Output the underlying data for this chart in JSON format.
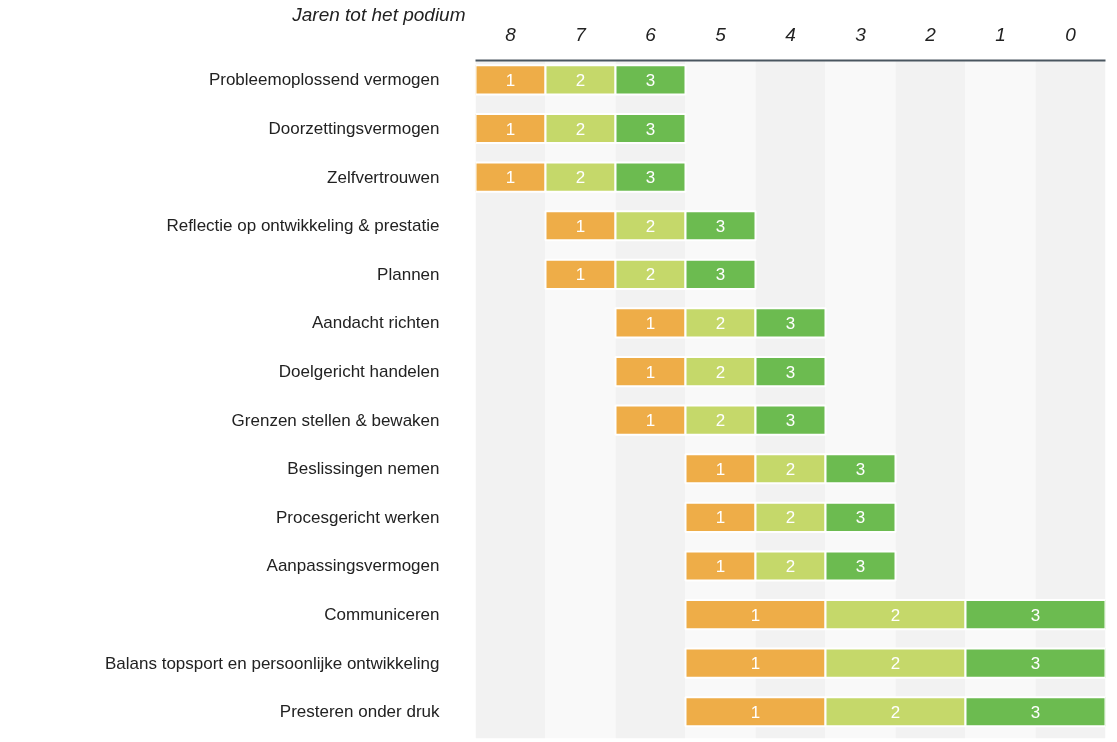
{
  "chart_data": {
    "type": "bar",
    "orientation": "horizontal",
    "xlabel": "Jaren tot het podium",
    "categories": [
      "Probleemoplossend vermogen",
      "Doorzettingsvermogen",
      "Zelfvertrouwen",
      "Reflectie op ontwikkeling & prestatie",
      "Plannen",
      "Aandacht richten",
      "Doelgericht handelen",
      "Grenzen stellen & bewaken",
      "Beslissingen nemen",
      "Procesgericht werken",
      "Aanpassingsvermogen",
      "Communiceren",
      "Balans topsport en persoonlijke ontwikkeling",
      "Presteren onder druk"
    ],
    "series": [
      {
        "name": "1",
        "color": "#eead48",
        "base": [
          7.5,
          7.5,
          7.5,
          6.5,
          6.5,
          5.5,
          5.5,
          5.5,
          4.5,
          4.5,
          4.5,
          3.5,
          3.5,
          3.5
        ],
        "values": [
          1,
          1,
          1,
          1,
          1,
          1,
          1,
          1,
          1,
          1,
          1,
          2,
          2,
          2
        ]
      },
      {
        "name": "2",
        "color": "#c5d86a",
        "base": [
          6.5,
          6.5,
          6.5,
          5.5,
          5.5,
          4.5,
          4.5,
          4.5,
          3.5,
          3.5,
          3.5,
          1.5,
          1.5,
          1.5
        ],
        "values": [
          1,
          1,
          1,
          1,
          1,
          1,
          1,
          1,
          1,
          1,
          1,
          2,
          2,
          2
        ]
      },
      {
        "name": "3",
        "color": "#6cbb50",
        "base": [
          5.5,
          5.5,
          5.5,
          4.5,
          4.5,
          3.5,
          3.5,
          3.5,
          2.5,
          2.5,
          2.5,
          -0.5,
          -0.5,
          -0.5
        ],
        "values": [
          1,
          1,
          1,
          1,
          1,
          1,
          1,
          1,
          1,
          1,
          1,
          2,
          2,
          2
        ]
      }
    ],
    "xlim": [
      8.5,
      -0.5
    ],
    "xticks": [
      8,
      7,
      6,
      5,
      4,
      3,
      2,
      1,
      0
    ],
    "bands": [
      {
        "axis": "x",
        "from": 8.5,
        "to": 7.5,
        "color": "#f2f2f2"
      },
      {
        "axis": "x",
        "from": 7.5,
        "to": 6.5,
        "color": "#f9f9f9"
      },
      {
        "axis": "x",
        "from": 6.5,
        "to": 5.5,
        "color": "#f2f2f2"
      },
      {
        "axis": "x",
        "from": 5.5,
        "to": 4.5,
        "color": "#f9f9f9"
      },
      {
        "axis": "x",
        "from": 4.5,
        "to": 3.5,
        "color": "#f2f2f2"
      },
      {
        "axis": "x",
        "from": 3.5,
        "to": 2.5,
        "color": "#f9f9f9"
      },
      {
        "axis": "x",
        "from": 2.5,
        "to": 1.5,
        "color": "#f2f2f2"
      },
      {
        "axis": "x",
        "from": 1.5,
        "to": 0.5,
        "color": "#f9f9f9"
      },
      {
        "axis": "x",
        "from": 0.5,
        "to": -0.5,
        "color": "#f2f2f2"
      }
    ]
  }
}
